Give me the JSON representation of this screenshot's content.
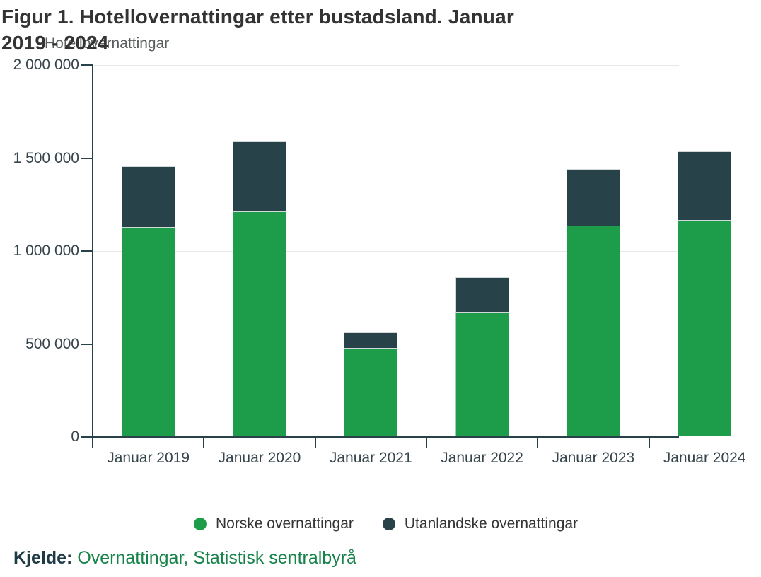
{
  "figure": {
    "title_line1": "Figur 1. Hotellovernattingar etter bustadsland. Januar",
    "title_line2": "2019 - 2024",
    "y_axis_title": "Hotellovernattingar",
    "source_label": "Kjelde:",
    "source_link_text": "Overnattingar, Statistisk sentralbyrå"
  },
  "colors": {
    "bar_norske_green": "#1d9c49",
    "bar_utanlandske_dark": "#274249",
    "axis": "#274249",
    "gridline": "#e8e8e8",
    "title_text": "#333333",
    "axis_title_text": "#5a5d5e",
    "tick_label_text": "#36454b",
    "source_link_green": "#17834a",
    "source_label_dark": "#1e3a45"
  },
  "chart_data": {
    "type": "bar",
    "stacked": true,
    "title": "Figur 1. Hotellovernattingar etter bustadsland. Januar 2019 - 2024",
    "ylabel": "Hotellovernattingar",
    "xlabel": "",
    "grid": true,
    "legend_position": "bottom",
    "ylim": [
      0,
      2000000
    ],
    "categories": [
      "Januar 2019",
      "Januar 2020",
      "Januar 2021",
      "Januar 2022",
      "Januar 2023",
      "Januar 2024"
    ],
    "series": [
      {
        "name": "Norske overnattingar",
        "color": "#1d9c49",
        "values": [
          1126000,
          1208000,
          474000,
          670000,
          1132000,
          1164000
        ]
      },
      {
        "name": "Utanlandske overnattingar",
        "color": "#274249",
        "values": [
          330000,
          380000,
          87000,
          190000,
          309000,
          372000
        ]
      }
    ],
    "totals": [
      1456000,
      1588000,
      561000,
      860000,
      1441000,
      1536000
    ],
    "y_ticks": [
      {
        "value": 0,
        "label": "0"
      },
      {
        "value": 500000,
        "label": "500 000"
      },
      {
        "value": 1000000,
        "label": "1 000 000"
      },
      {
        "value": 1500000,
        "label": "1 500 000"
      },
      {
        "value": 2000000,
        "label": "2 000 000"
      }
    ]
  }
}
